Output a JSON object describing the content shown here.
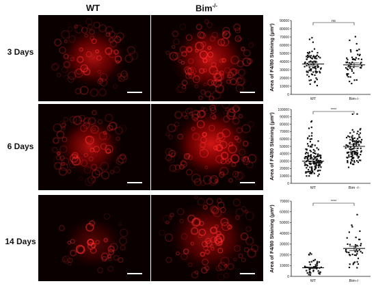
{
  "columns": {
    "wt": "WT",
    "bim_base": "Bim",
    "bim_sup": "-/-"
  },
  "rows": [
    {
      "label": "3 Days"
    },
    {
      "label": "6 Days"
    },
    {
      "label": "14 Days"
    }
  ],
  "chart_data": [
    {
      "type": "scatter",
      "ylabel": "Area of F4/80 Staining (μm²)",
      "categories": [
        "WT",
        "Bim-/-"
      ],
      "ylim": [
        0,
        90000
      ],
      "yticks": [
        0,
        10000,
        20000,
        30000,
        40000,
        50000,
        60000,
        70000,
        80000,
        90000
      ],
      "significance": "ns",
      "means": [
        37000,
        36000
      ],
      "counts": [
        85,
        55
      ],
      "spread": [
        [
          10000,
          74000
        ],
        [
          8000,
          75000
        ]
      ]
    },
    {
      "type": "scatter",
      "ylabel": "Area of F4/80 Staining (μm²)",
      "categories": [
        "WT",
        "Bim -/-"
      ],
      "ylim": [
        0,
        100000
      ],
      "yticks": [
        0,
        10000,
        20000,
        30000,
        40000,
        50000,
        60000,
        70000,
        80000,
        90000,
        100000
      ],
      "significance": "****",
      "means": [
        30000,
        50000
      ],
      "counts": [
        150,
        120
      ],
      "spread": [
        [
          10000,
          85000
        ],
        [
          18000,
          97000
        ]
      ]
    },
    {
      "type": "scatter",
      "ylabel": "Area of F4/80 Staining (μm²)",
      "categories": [
        "WT",
        "Bim-/-"
      ],
      "ylim": [
        0,
        70000
      ],
      "yticks": [
        0,
        10000,
        20000,
        30000,
        40000,
        50000,
        60000,
        70000
      ],
      "significance": "****",
      "means": [
        8000,
        26000
      ],
      "counts": [
        45,
        42
      ],
      "spread": [
        [
          1000,
          22000
        ],
        [
          8000,
          65000
        ]
      ]
    }
  ]
}
